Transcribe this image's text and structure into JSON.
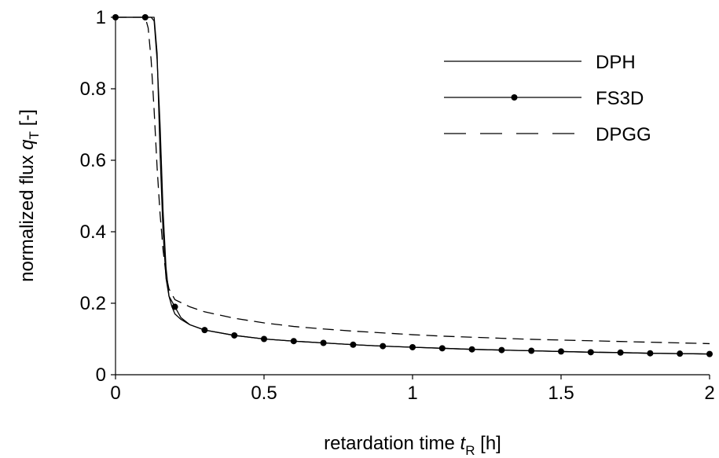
{
  "chart_data": {
    "type": "line",
    "xlabel": {
      "prefix": "retardation time ",
      "var": "t",
      "sub": "R",
      "suffix": " [h]"
    },
    "ylabel": {
      "prefix": "normalized flux ",
      "var": "q",
      "sub": "T",
      "suffix": " [-]"
    },
    "xlim": [
      0,
      2
    ],
    "ylim": [
      0,
      1
    ],
    "xticks": [
      0,
      0.5,
      1,
      1.5,
      2
    ],
    "xtick_labels": [
      "0",
      "0.5",
      "1",
      "1.5",
      "2"
    ],
    "yticks": [
      0,
      0.2,
      0.4,
      0.6,
      0.8,
      1
    ],
    "ytick_labels": [
      "0",
      "0.2",
      "0.4",
      "0.6",
      "0.8",
      "1"
    ],
    "grid": false,
    "legend_position": "top-right",
    "series": [
      {
        "name": "DPH",
        "style": "solid",
        "x": [
          0,
          0.1,
          0.12,
          0.13,
          0.14,
          0.15,
          0.16,
          0.17,
          0.18,
          0.19,
          0.2,
          0.22,
          0.25,
          0.3,
          0.4,
          0.5,
          0.6,
          0.7,
          0.8,
          0.9,
          1.0,
          1.1,
          1.2,
          1.3,
          1.4,
          1.5,
          1.6,
          1.7,
          1.8,
          1.9,
          2.0
        ],
        "y": [
          1,
          1,
          1,
          0.99,
          0.88,
          0.7,
          0.46,
          0.3,
          0.22,
          0.19,
          0.17,
          0.155,
          0.14,
          0.125,
          0.11,
          0.1,
          0.094,
          0.089,
          0.084,
          0.08,
          0.077,
          0.074,
          0.071,
          0.069,
          0.067,
          0.065,
          0.063,
          0.062,
          0.06,
          0.059,
          0.058
        ]
      },
      {
        "name": "FS3D",
        "style": "solid-marker",
        "x": [
          0,
          0.1,
          0.13,
          0.14,
          0.15,
          0.16,
          0.17,
          0.18,
          0.2,
          0.22,
          0.25,
          0.3,
          0.4,
          0.5,
          0.6,
          0.7,
          0.8,
          0.9,
          1.0,
          1.1,
          1.2,
          1.3,
          1.4,
          1.5,
          1.6,
          1.7,
          1.8,
          1.9,
          2.0
        ],
        "y": [
          1,
          1,
          1,
          0.9,
          0.62,
          0.4,
          0.27,
          0.22,
          0.19,
          0.16,
          0.14,
          0.125,
          0.11,
          0.1,
          0.094,
          0.089,
          0.084,
          0.08,
          0.077,
          0.074,
          0.071,
          0.069,
          0.067,
          0.065,
          0.063,
          0.062,
          0.06,
          0.059,
          0.058
        ],
        "marker_x": [
          0,
          0.1,
          0.2,
          0.3,
          0.4,
          0.5,
          0.6,
          0.7,
          0.8,
          0.9,
          1.0,
          1.1,
          1.2,
          1.3,
          1.4,
          1.5,
          1.6,
          1.7,
          1.8,
          1.9,
          2.0
        ],
        "marker_y": [
          1,
          1,
          0.19,
          0.125,
          0.11,
          0.1,
          0.094,
          0.089,
          0.084,
          0.08,
          0.077,
          0.074,
          0.071,
          0.069,
          0.067,
          0.065,
          0.063,
          0.062,
          0.06,
          0.059,
          0.058
        ]
      },
      {
        "name": "DPGG",
        "style": "dashed",
        "x": [
          0,
          0.1,
          0.11,
          0.12,
          0.13,
          0.14,
          0.15,
          0.16,
          0.17,
          0.18,
          0.2,
          0.25,
          0.3,
          0.4,
          0.5,
          0.6,
          0.7,
          0.8,
          0.9,
          1.0,
          1.1,
          1.2,
          1.3,
          1.4,
          1.5,
          1.6,
          1.7,
          1.8,
          1.9,
          2.0
        ],
        "y": [
          1,
          1,
          0.97,
          0.88,
          0.74,
          0.58,
          0.45,
          0.35,
          0.28,
          0.24,
          0.21,
          0.19,
          0.176,
          0.158,
          0.145,
          0.135,
          0.128,
          0.122,
          0.117,
          0.112,
          0.108,
          0.105,
          0.102,
          0.099,
          0.097,
          0.095,
          0.093,
          0.091,
          0.089,
          0.087
        ]
      }
    ]
  }
}
